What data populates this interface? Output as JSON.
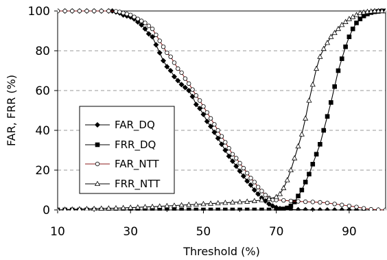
{
  "chart_data": {
    "type": "line",
    "xlabel": "Threshold (%)",
    "ylabel": "FAR, FRR (%)",
    "xlim": [
      10,
      100
    ],
    "ylim": [
      0,
      100
    ],
    "x_ticks": [
      10,
      30,
      50,
      70,
      90
    ],
    "y_ticks": [
      0,
      20,
      40,
      60,
      80,
      100
    ],
    "grid": "horizontal dashed",
    "legend_position": "left-middle",
    "series": [
      {
        "name": "FAR_DQ",
        "marker": "diamond-filled",
        "line_color": "#000000",
        "x": [
          10,
          12,
          14,
          16,
          18,
          20,
          22,
          24,
          25,
          26,
          27,
          28,
          29,
          30,
          31,
          32,
          33,
          34,
          35,
          36,
          37,
          38,
          39,
          40,
          41,
          42,
          43,
          44,
          45,
          46,
          47,
          48,
          49,
          50,
          51,
          52,
          53,
          54,
          55,
          56,
          57,
          58,
          59,
          60,
          61,
          62,
          63,
          64,
          65,
          66,
          67,
          68,
          69,
          70,
          71,
          72,
          74,
          76,
          78,
          80,
          82,
          84,
          86,
          88,
          90,
          92,
          94,
          96,
          98,
          100
        ],
        "values": [
          100,
          100,
          100,
          100,
          100,
          100,
          100,
          100,
          100,
          99.5,
          99,
          98,
          97.5,
          97,
          96,
          94.5,
          93,
          91,
          88.5,
          87,
          83,
          79,
          75,
          72,
          70,
          67,
          65,
          63,
          61.5,
          60,
          57,
          53,
          51,
          48,
          44.5,
          42,
          39,
          36,
          33,
          30,
          27,
          24.5,
          22,
          19.5,
          17,
          14.5,
          12.5,
          10,
          8,
          6,
          4.5,
          3,
          2,
          1.2,
          0.7,
          0.3,
          0.2,
          0.1,
          0.1,
          0,
          0,
          0,
          0,
          0,
          0,
          0,
          0,
          0,
          0,
          0
        ]
      },
      {
        "name": "FRR_DQ",
        "marker": "square-filled",
        "line_color": "#000000",
        "x": [
          10,
          12,
          14,
          16,
          18,
          20,
          22,
          24,
          26,
          28,
          30,
          32,
          34,
          36,
          38,
          40,
          42,
          44,
          46,
          48,
          50,
          52,
          54,
          56,
          58,
          60,
          62,
          64,
          66,
          68,
          70,
          71,
          72,
          73,
          74,
          75,
          76,
          77,
          78,
          79,
          80,
          81,
          82,
          83,
          84,
          85,
          86,
          87,
          88,
          89,
          90,
          91,
          92,
          93,
          94,
          95,
          96,
          97,
          98,
          99,
          100
        ],
        "values": [
          0,
          0,
          0,
          0,
          0,
          0,
          0,
          0,
          0,
          0,
          0,
          0,
          0,
          0,
          0,
          0,
          0,
          0,
          0,
          0,
          0,
          0,
          0,
          0,
          0,
          0,
          0,
          0,
          0,
          0,
          0,
          0.3,
          0.5,
          1,
          2,
          4,
          7,
          10,
          14,
          18,
          23,
          28,
          33,
          40,
          47,
          54,
          62,
          70,
          76,
          82,
          87,
          91,
          94,
          96,
          97.5,
          98.5,
          99.2,
          99.6,
          99.8,
          100,
          100
        ]
      },
      {
        "name": "FAR_NTT",
        "marker": "circle-open",
        "line_color": "#8b1a1a",
        "x": [
          10,
          12,
          14,
          16,
          18,
          20,
          22,
          24,
          26,
          27,
          28,
          29,
          30,
          31,
          32,
          33,
          34,
          35,
          36,
          37,
          38,
          39,
          40,
          41,
          42,
          43,
          44,
          45,
          46,
          47,
          48,
          49,
          50,
          51,
          52,
          53,
          54,
          55,
          56,
          57,
          58,
          59,
          60,
          61,
          62,
          63,
          64,
          65,
          66,
          67,
          68,
          69,
          70,
          72,
          74,
          76,
          78,
          80,
          82,
          84,
          86,
          88,
          90,
          92,
          94,
          96,
          98,
          100
        ],
        "values": [
          100,
          100,
          100,
          100,
          100,
          100,
          100,
          100,
          99.8,
          99.5,
          99,
          98.5,
          98,
          97,
          96,
          95,
          94,
          92.5,
          91,
          88,
          85,
          82,
          79,
          77,
          74,
          71,
          69,
          66,
          63.5,
          60.5,
          57.5,
          55,
          52,
          49,
          46,
          43,
          40,
          37,
          34,
          31,
          28,
          26,
          23.5,
          21,
          18.5,
          16,
          14,
          11.5,
          9.5,
          7.5,
          6,
          5,
          5,
          4.8,
          4.5,
          4.3,
          4.1,
          4,
          3.8,
          3.5,
          3,
          2.5,
          2,
          1.5,
          0.8,
          0.3,
          0.1,
          0
        ]
      },
      {
        "name": "FRR_NTT",
        "marker": "triangle-open",
        "line_color": "#000000",
        "x": [
          10,
          12,
          14,
          16,
          18,
          20,
          22,
          24,
          26,
          28,
          30,
          32,
          34,
          36,
          38,
          40,
          42,
          44,
          46,
          48,
          50,
          52,
          54,
          56,
          58,
          60,
          62,
          64,
          66,
          68,
          70,
          71,
          72,
          73,
          74,
          75,
          76,
          77,
          78,
          79,
          80,
          81,
          82,
          83,
          84,
          85,
          86,
          87,
          88,
          89,
          90,
          91,
          92,
          93,
          94,
          95,
          96,
          97,
          98,
          99,
          100
        ],
        "values": [
          0,
          0.2,
          0.3,
          0.4,
          0.5,
          0.6,
          0.7,
          0.8,
          0.9,
          1,
          1.2,
          1.3,
          1.5,
          1.6,
          1.8,
          2,
          2.2,
          2.4,
          2.6,
          2.8,
          3,
          3.2,
          3.4,
          3.6,
          3.8,
          4,
          4.2,
          4.5,
          5,
          5.5,
          6.5,
          8,
          11,
          15,
          20,
          26,
          32,
          38,
          46,
          55,
          63,
          71,
          77,
          81,
          84,
          87,
          89,
          91,
          93,
          94.5,
          96,
          97,
          98,
          99,
          99.3,
          99.6,
          99.8,
          100,
          100,
          100,
          100
        ]
      }
    ]
  }
}
